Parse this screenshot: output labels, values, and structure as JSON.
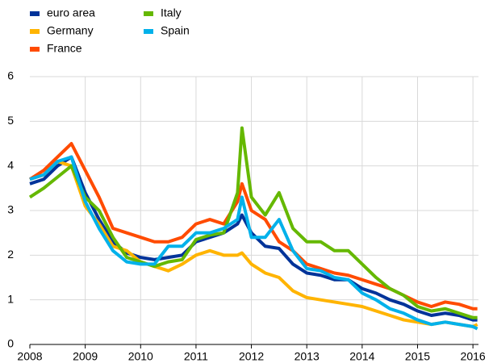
{
  "chart_data": {
    "type": "line",
    "x": [
      2008,
      2008.25,
      2008.5,
      2008.75,
      2009,
      2009.25,
      2009.5,
      2009.75,
      2010,
      2010.25,
      2010.5,
      2010.75,
      2011,
      2011.25,
      2011.5,
      2011.75,
      2011.83,
      2012,
      2012.25,
      2012.5,
      2012.75,
      2013,
      2013.25,
      2013.5,
      2013.75,
      2014,
      2014.25,
      2014.5,
      2014.75,
      2015,
      2015.25,
      2015.5,
      2015.75,
      2016,
      2016.08
    ],
    "series": [
      {
        "name": "euro area",
        "color": "#003399",
        "values": [
          3.6,
          3.7,
          4.0,
          4.2,
          3.4,
          2.8,
          2.3,
          2.05,
          1.95,
          1.9,
          1.95,
          2.0,
          2.3,
          2.4,
          2.5,
          2.7,
          2.9,
          2.5,
          2.2,
          2.15,
          1.8,
          1.6,
          1.55,
          1.45,
          1.45,
          1.25,
          1.15,
          1.0,
          0.9,
          0.75,
          0.65,
          0.7,
          0.65,
          0.55,
          0.55
        ]
      },
      {
        "name": "Germany",
        "color": "#ffb400",
        "values": [
          3.7,
          3.8,
          4.1,
          4.0,
          3.1,
          2.7,
          2.2,
          2.1,
          1.85,
          1.75,
          1.65,
          1.8,
          2.0,
          2.1,
          2.0,
          2.0,
          2.05,
          1.8,
          1.6,
          1.5,
          1.2,
          1.05,
          1.0,
          0.95,
          0.9,
          0.85,
          0.75,
          0.65,
          0.55,
          0.5,
          0.45,
          0.5,
          0.45,
          0.4,
          0.45
        ]
      },
      {
        "name": "France",
        "color": "#ff4b00",
        "values": [
          3.7,
          3.9,
          4.2,
          4.5,
          3.9,
          3.3,
          2.6,
          2.5,
          2.4,
          2.3,
          2.3,
          2.4,
          2.7,
          2.8,
          2.7,
          3.2,
          3.6,
          3.0,
          2.8,
          2.3,
          2.1,
          1.8,
          1.7,
          1.6,
          1.55,
          1.45,
          1.35,
          1.25,
          1.1,
          0.95,
          0.85,
          0.95,
          0.9,
          0.8,
          0.8
        ]
      },
      {
        "name": "Italy",
        "color": "#65b800",
        "values": [
          3.3,
          3.5,
          3.75,
          4.0,
          3.3,
          3.0,
          2.4,
          1.95,
          1.85,
          1.75,
          1.85,
          1.9,
          2.35,
          2.45,
          2.5,
          3.4,
          4.85,
          3.3,
          2.9,
          3.4,
          2.6,
          2.3,
          2.3,
          2.1,
          2.1,
          1.8,
          1.5,
          1.25,
          1.1,
          0.85,
          0.75,
          0.8,
          0.7,
          0.6,
          0.6
        ]
      },
      {
        "name": "Spain",
        "color": "#00b1ea",
        "values": [
          3.7,
          3.8,
          4.1,
          4.2,
          3.2,
          2.6,
          2.1,
          1.85,
          1.8,
          1.8,
          2.2,
          2.2,
          2.5,
          2.5,
          2.6,
          2.8,
          3.3,
          2.4,
          2.4,
          2.8,
          2.1,
          1.7,
          1.65,
          1.5,
          1.45,
          1.15,
          1.0,
          0.8,
          0.7,
          0.55,
          0.45,
          0.5,
          0.45,
          0.4,
          0.35
        ]
      }
    ],
    "xlim": [
      2008,
      2016.1
    ],
    "xticks": [
      2008,
      2009,
      2010,
      2011,
      2012,
      2013,
      2014,
      2015,
      2016
    ],
    "ylim": [
      0,
      6
    ],
    "yticks": [
      0,
      1,
      2,
      3,
      4,
      5,
      6
    ],
    "grid": true
  }
}
